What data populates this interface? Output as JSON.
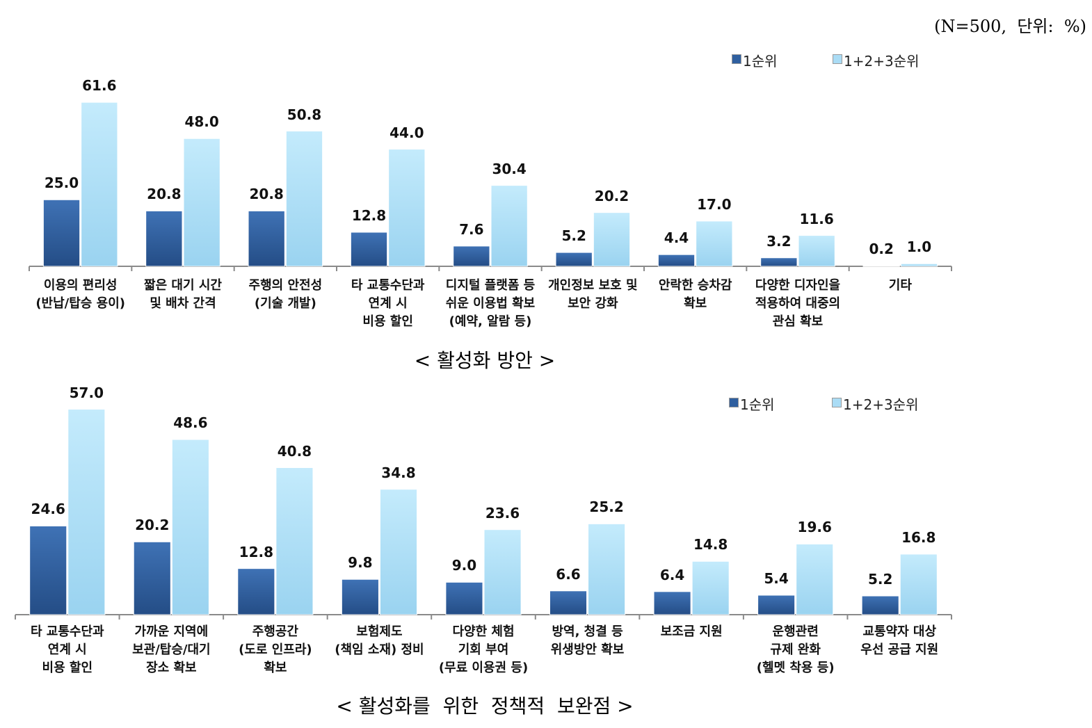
{
  "note": "(N=500,  단위:  %)",
  "chart_data": [
    {
      "type": "bar",
      "title": "< 활성화 방안 >",
      "categories": [
        "이용의 편리성\n(반납/탑승 용이)",
        "짧은 대기 시간\n및 배차 간격",
        "주행의 안전성\n(기술 개발)",
        "타 교통수단과\n연계 시\n비용 할인",
        "디지털 플랫폼 등\n쉬운 이용법 확보\n(예약, 알람 등)",
        "개인정보 보호 및\n보안 강화",
        "안락한 승차감\n확보",
        "다양한 디자인을\n적용하여 대중의\n관심 확보",
        "기타"
      ],
      "series": [
        {
          "name": "1순위",
          "color": "#2f5f9f",
          "values": [
            25.0,
            20.8,
            20.8,
            12.8,
            7.6,
            5.2,
            4.4,
            3.2,
            0.2
          ],
          "value_labels": [
            "25.0",
            "20.8",
            "20.8",
            "12.8",
            "7.6",
            "5.2",
            "4.4",
            "3.2",
            "0.2"
          ]
        },
        {
          "name": "1+2+3순위",
          "color": "#aadcf5",
          "values": [
            61.6,
            48.0,
            50.8,
            44.0,
            30.4,
            20.2,
            17.0,
            11.6,
            1.0
          ],
          "value_labels": [
            "61.6",
            "48.0",
            "50.8",
            "44.0",
            "30.4",
            "20.2",
            "17.0",
            "11.6",
            "1.0"
          ]
        }
      ],
      "ylim": [
        0,
        70
      ]
    },
    {
      "type": "bar",
      "title": "< 활성화를  위한  정책적  보완점 >",
      "categories": [
        "타 교통수단과\n연계 시\n비용 할인",
        "가까운 지역에\n보관/탑승/대기\n장소 확보",
        "주행공간\n(도로 인프라)\n확보",
        "보험제도\n(책임 소재) 정비",
        "다양한 체험\n기회 부여\n(무료 이용권 등)",
        "방역, 청결 등\n위생방안 확보",
        "보조금 지원",
        "운행관련\n규제 완화\n(헬멧 착용 등)",
        "교통약자 대상\n우선 공급 지원"
      ],
      "series": [
        {
          "name": "1순위",
          "color": "#2f5f9f",
          "values": [
            24.6,
            20.2,
            12.8,
            9.8,
            9.0,
            6.6,
            6.4,
            5.4,
            5.2
          ],
          "value_labels": [
            "24.6",
            "20.2",
            "12.8",
            "9.8",
            "9.0",
            "6.6",
            "6.4",
            "5.4",
            "5.2"
          ]
        },
        {
          "name": "1+2+3순위",
          "color": "#aadcf5",
          "values": [
            57.0,
            48.6,
            40.8,
            34.8,
            23.6,
            25.2,
            14.8,
            19.6,
            16.8
          ],
          "value_labels": [
            "57.0",
            "48.6",
            "40.8",
            "34.8",
            "23.6",
            "25.2",
            "14.8",
            "19.6",
            "16.8"
          ]
        }
      ],
      "ylim": [
        0,
        60
      ]
    }
  ]
}
